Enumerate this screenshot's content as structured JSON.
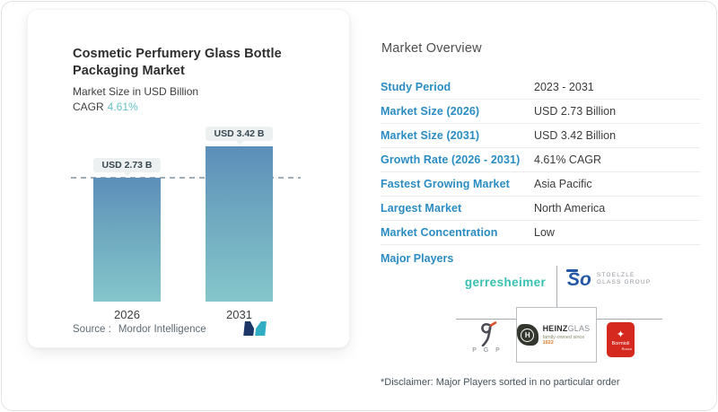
{
  "colors": {
    "accent_blue": "#2a8cc2",
    "teal_accent": "#66c2c5",
    "bar_gradient_top": "#5c8eb9",
    "bar_gradient_bottom": "#84c6cb",
    "pill_background": "#edf0f1",
    "gerresheimer_teal": "#38c1b1",
    "stoelzle_blue": "#2456a6",
    "bormioli_red": "#d5281e",
    "heinz_dark": "#32362c"
  },
  "chart_card": {
    "title_line1": "Cosmetic Perfumery Glass Bottle",
    "title_line2": "Packaging Market",
    "subtitle": "Market Size in USD Billion",
    "cagr_label": "CAGR",
    "cagr_value": "4.61%",
    "source_label": "Source :",
    "source_value": "Mordor Intelligence",
    "logo_icon": "mordor-intelligence-logo"
  },
  "chart_data": {
    "type": "bar",
    "title": "Cosmetic Perfumery Glass Bottle Packaging Market",
    "subtitle": "Market Size in USD Billion",
    "unit": "USD Billion",
    "categories": [
      "2026",
      "2031"
    ],
    "values": [
      2.73,
      3.42
    ],
    "bar_labels": [
      "USD 2.73 B",
      "USD 3.42 B"
    ],
    "baseline_value": 2.73,
    "cagr": "4.61%",
    "ylim": [
      0,
      3.66
    ],
    "grid": false,
    "legend": false
  },
  "overview": {
    "heading": "Market Overview",
    "rows": [
      {
        "label": "Study Period",
        "value": "2023 - 2031"
      },
      {
        "label": "Market Size (2026)",
        "value": "USD 2.73 Billion"
      },
      {
        "label": "Market Size (2031)",
        "value": "USD 3.42 Billion"
      },
      {
        "label": "Growth Rate (2026 - 2031)",
        "value": "4.61% CAGR"
      },
      {
        "label": "Fastest Growing Market",
        "value": "Asia Pacific"
      },
      {
        "label": "Largest Market",
        "value": "North America"
      },
      {
        "label": "Market Concentration",
        "value": "Low"
      }
    ],
    "major_players_label": "Major Players",
    "players": {
      "gerresheimer_name": "gerresheimer",
      "stoelzle_monogram": "So",
      "stoelzle_line1": "STOELZLE",
      "stoelzle_line2": "GLASS GROUP",
      "pgp_letters": "P G P",
      "heinz_bold": "HEINZ",
      "heinz_light": "GLAS",
      "heinz_icon_letter": "H",
      "heinz_sub_text": "family-owned since ",
      "heinz_sub_year": "1622",
      "bormioli_star": "✦",
      "bormioli_name": "Bormioli",
      "bormioli_sub": "Rocco"
    },
    "disclaimer": "*Disclaimer: Major Players sorted in no particular order"
  }
}
